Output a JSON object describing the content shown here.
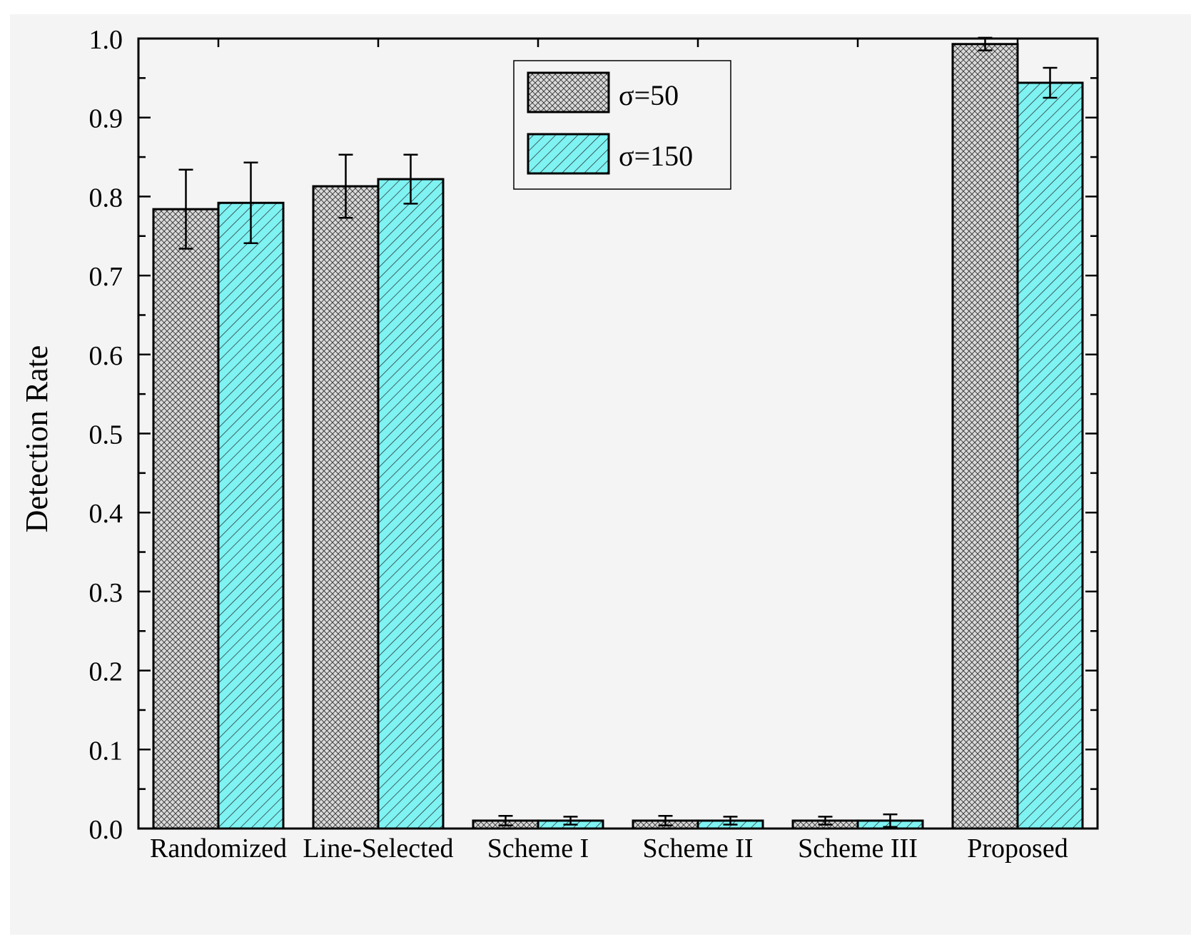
{
  "chart_data": {
    "type": "bar",
    "ylabel": "Detection Rate",
    "xlabel": "",
    "ylim": [
      0.0,
      1.0
    ],
    "yticks": [
      "0.0",
      "0.1",
      "0.2",
      "0.3",
      "0.4",
      "0.5",
      "0.6",
      "0.7",
      "0.8",
      "0.9",
      "1.0"
    ],
    "categories": [
      "Randomized",
      "Line-Selected",
      "Scheme I",
      "Scheme II",
      "Scheme III",
      "Proposed"
    ],
    "series": [
      {
        "name": "σ=50",
        "pattern": "crosshatch",
        "color": "#d9d9d9",
        "values": [
          0.784,
          0.813,
          0.01,
          0.01,
          0.01,
          0.993
        ],
        "errors": [
          0.05,
          0.04,
          0.006,
          0.006,
          0.005,
          0.008
        ]
      },
      {
        "name": "σ=150",
        "pattern": "diagonal",
        "color": "#7ff2f2",
        "values": [
          0.792,
          0.822,
          0.01,
          0.01,
          0.01,
          0.944
        ],
        "errors": [
          0.051,
          0.031,
          0.005,
          0.005,
          0.008,
          0.019
        ]
      }
    ],
    "legend_position": "top-center",
    "grid": false
  }
}
